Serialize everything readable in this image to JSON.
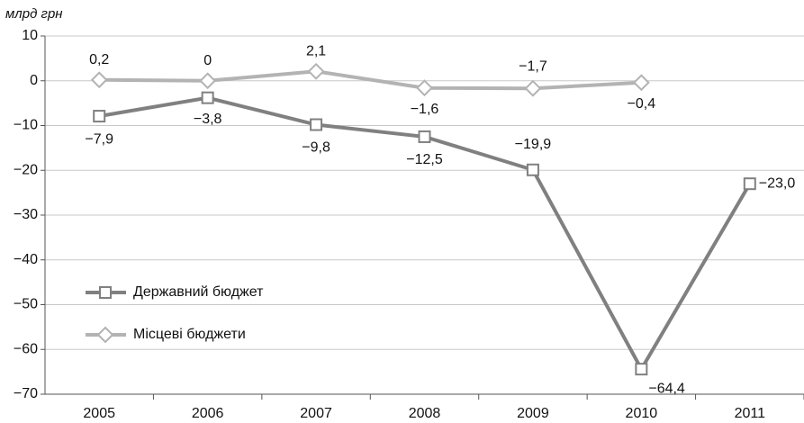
{
  "chart_data": {
    "type": "line",
    "y_axis_label": "млрд грн",
    "categories": [
      "2005",
      "2006",
      "2007",
      "2008",
      "2009",
      "2010",
      "2011"
    ],
    "series": [
      {
        "name": "Державний бюджет",
        "color": "#808080",
        "marker": "square",
        "values": [
          -7.9,
          -3.8,
          -9.8,
          -12.5,
          -19.9,
          -64.4,
          -23.0
        ],
        "value_labels": [
          "−7,9",
          "−3,8",
          "−9,8",
          "−12,5",
          "−19,9",
          "−64,4",
          "−23,0"
        ]
      },
      {
        "name": "Місцеві бюджети",
        "color": "#b3b3b3",
        "marker": "diamond",
        "values": [
          0.2,
          0,
          2.1,
          -1.6,
          -1.7,
          -0.4,
          null
        ],
        "value_labels": [
          "0,2",
          "0",
          "2,1",
          "−1,6",
          "−1,7",
          "−0,4",
          null
        ]
      }
    ],
    "ylim": [
      -70,
      10
    ],
    "yticks": [
      10,
      0,
      {
        "value": -10,
        "label": "−10"
      },
      {
        "value": -20,
        "label": "−20"
      },
      {
        "value": -30,
        "label": "−30"
      },
      {
        "value": -40,
        "label": "−40"
      },
      {
        "value": -50,
        "label": "−50"
      },
      {
        "value": -60,
        "label": "−60"
      },
      {
        "value": -70,
        "label": "−70"
      }
    ],
    "grid": true,
    "legend": "lower left"
  }
}
